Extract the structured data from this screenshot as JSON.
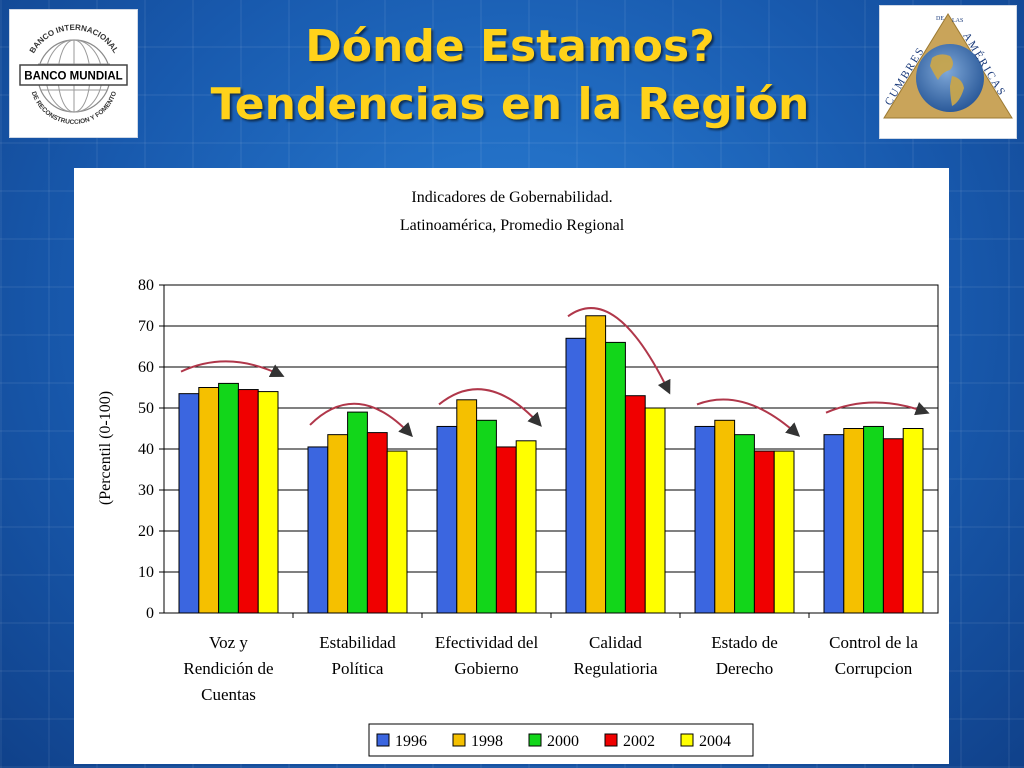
{
  "slide": {
    "title_line1": "Dónde Estamos?",
    "title_line2": "Tendencias en la Región"
  },
  "logos": {
    "left": {
      "name": "BANCO MUNDIAL",
      "ring_top": "BANCO INTERNACIONAL",
      "ring_bottom": "DE RECONSTRUCCION Y FOMENTO"
    },
    "right": {
      "ring_left": "CUMBRES",
      "ring_de": "DE",
      "ring_las": "LAS",
      "ring_right": "AMÉRICAS"
    }
  },
  "colors": {
    "slide_background": "#1a5fb4",
    "title": "#ffd21a",
    "arrow": "#b0374a"
  },
  "chart_data": {
    "type": "bar",
    "title": "Indicadores de Gobernabilidad.",
    "subtitle": "Latinoamérica, Promedio Regional",
    "xlabel": "",
    "ylabel": "(Percentil (0-100)",
    "ylim": [
      0,
      80
    ],
    "yticks": [
      0,
      10,
      20,
      30,
      40,
      50,
      60,
      70,
      80
    ],
    "grid": true,
    "legend_position": "bottom",
    "categories": [
      [
        "Voz y",
        "Rendición de",
        "Cuentas"
      ],
      [
        "Estabilidad",
        "Política"
      ],
      [
        "Efectividad del",
        "Gobierno"
      ],
      [
        "Calidad",
        "Regulatioria"
      ],
      [
        "Estado de",
        "Derecho"
      ],
      [
        "Control de la",
        "Corrupcion"
      ]
    ],
    "series": [
      {
        "name": "1996",
        "color": "#3b66e0",
        "values": [
          53.5,
          40.5,
          45.5,
          67,
          45.5,
          43.5
        ]
      },
      {
        "name": "1998",
        "color": "#f5c000",
        "values": [
          55,
          43.5,
          52,
          72.5,
          47,
          45
        ]
      },
      {
        "name": "2000",
        "color": "#12d61a",
        "values": [
          56,
          49,
          47,
          66,
          43.5,
          45.5
        ]
      },
      {
        "name": "2002",
        "color": "#f00000",
        "values": [
          54.5,
          44,
          40.5,
          53,
          39.5,
          42.5
        ]
      },
      {
        "name": "2004",
        "color": "#ffff00",
        "values": [
          54,
          39.5,
          42,
          50,
          39.5,
          45
        ]
      }
    ]
  }
}
